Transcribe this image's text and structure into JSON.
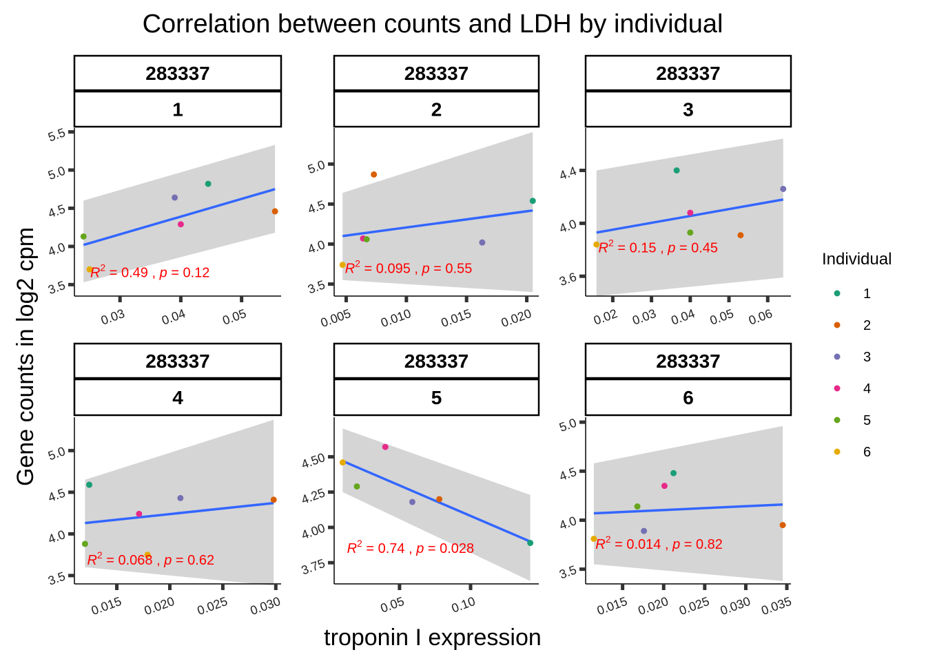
{
  "title": "Correlation between counts and LDH by individual",
  "xlabel": "troponin I expression",
  "ylabel": "Gene counts in log2 cpm",
  "legend": {
    "title": "Individual",
    "items": [
      {
        "label": "1",
        "color": "#1b9e77"
      },
      {
        "label": "2",
        "color": "#d95f02"
      },
      {
        "label": "3",
        "color": "#7570b3"
      },
      {
        "label": "4",
        "color": "#e7298a"
      },
      {
        "label": "5",
        "color": "#66a61e"
      },
      {
        "label": "6",
        "color": "#e6ab02"
      }
    ]
  },
  "chart_data": [
    {
      "type": "scatter",
      "strip_top": "283337",
      "strip_bottom": "1",
      "xlim": [
        0.0225,
        0.0565
      ],
      "ylim": [
        3.35,
        5.55
      ],
      "xticks": [
        {
          "v": 0.03,
          "label": "0.03"
        },
        {
          "v": 0.04,
          "label": "0.04"
        },
        {
          "v": 0.05,
          "label": "0.05"
        }
      ],
      "yticks": [
        {
          "v": 3.5,
          "label": "3.5"
        },
        {
          "v": 4.0,
          "label": "4.0"
        },
        {
          "v": 4.5,
          "label": "4.5"
        },
        {
          "v": 5.0,
          "label": "5.0"
        },
        {
          "v": 5.5,
          "label": "5.5"
        }
      ],
      "points": [
        {
          "individual": "1",
          "x": 0.0445,
          "y": 4.82
        },
        {
          "individual": "2",
          "x": 0.0555,
          "y": 4.46
        },
        {
          "individual": "3",
          "x": 0.039,
          "y": 4.64
        },
        {
          "individual": "4",
          "x": 0.04,
          "y": 4.29
        },
        {
          "individual": "5",
          "x": 0.024,
          "y": 4.13
        },
        {
          "individual": "6",
          "x": 0.025,
          "y": 3.7
        }
      ],
      "fit": {
        "x": [
          0.024,
          0.0555
        ],
        "y": [
          4.02,
          4.75
        ],
        "band_low": [
          3.53,
          4.18
        ],
        "band_high": [
          4.6,
          5.33
        ]
      },
      "annotation": {
        "r2_symbol": "R",
        "r2_exp": "2",
        "r2_rest": " = 0.49 , ",
        "p_symbol": "p",
        "p_rest": " = 0.12",
        "x": 0.0251,
        "y": 3.6
      }
    },
    {
      "type": "scatter",
      "strip_top": "283337",
      "strip_bottom": "2",
      "xlim": [
        0.004,
        0.021
      ],
      "ylim": [
        3.35,
        5.45
      ],
      "xticks": [
        {
          "v": 0.005,
          "label": "0.005"
        },
        {
          "v": 0.01,
          "label": "0.010"
        },
        {
          "v": 0.015,
          "label": "0.015"
        },
        {
          "v": 0.02,
          "label": "0.020"
        }
      ],
      "yticks": [
        {
          "v": 3.5,
          "label": "3.5"
        },
        {
          "v": 4.0,
          "label": "4.0"
        },
        {
          "v": 4.5,
          "label": "4.5"
        },
        {
          "v": 5.0,
          "label": "5.0"
        }
      ],
      "points": [
        {
          "individual": "1",
          "x": 0.0205,
          "y": 4.54
        },
        {
          "individual": "2",
          "x": 0.0073,
          "y": 4.87
        },
        {
          "individual": "3",
          "x": 0.0163,
          "y": 4.02
        },
        {
          "individual": "4",
          "x": 0.0064,
          "y": 4.07
        },
        {
          "individual": "5",
          "x": 0.0067,
          "y": 4.06
        },
        {
          "individual": "6",
          "x": 0.0047,
          "y": 3.74
        }
      ],
      "fit": {
        "x": [
          0.0047,
          0.0205
        ],
        "y": [
          4.1,
          4.42
        ],
        "band_low": [
          3.55,
          3.4
        ],
        "band_high": [
          4.64,
          5.4
        ]
      },
      "annotation": {
        "r2_symbol": "R",
        "r2_exp": "2",
        "r2_rest": " = 0.095 , ",
        "p_symbol": "p",
        "p_rest": " = 0.55",
        "x": 0.0049,
        "y": 3.64
      }
    },
    {
      "type": "scatter",
      "strip_top": "283337",
      "strip_bottom": "3",
      "xlim": [
        0.013,
        0.066
      ],
      "ylim": [
        3.45,
        4.72
      ],
      "xticks": [
        {
          "v": 0.02,
          "label": "0.02"
        },
        {
          "v": 0.03,
          "label": "0.03"
        },
        {
          "v": 0.04,
          "label": "0.04"
        },
        {
          "v": 0.05,
          "label": "0.05"
        },
        {
          "v": 0.06,
          "label": "0.06"
        }
      ],
      "yticks": [
        {
          "v": 3.6,
          "label": "3.6"
        },
        {
          "v": 4.0,
          "label": "4.0"
        },
        {
          "v": 4.4,
          "label": "4.4"
        }
      ],
      "points": [
        {
          "individual": "1",
          "x": 0.0365,
          "y": 4.4
        },
        {
          "individual": "2",
          "x": 0.053,
          "y": 3.91
        },
        {
          "individual": "3",
          "x": 0.064,
          "y": 4.26
        },
        {
          "individual": "4",
          "x": 0.04,
          "y": 4.08
        },
        {
          "individual": "5",
          "x": 0.04,
          "y": 3.93
        },
        {
          "individual": "6",
          "x": 0.0158,
          "y": 3.84
        }
      ],
      "fit": {
        "x": [
          0.0158,
          0.064
        ],
        "y": [
          3.93,
          4.18
        ],
        "band_low": [
          3.45,
          3.59
        ],
        "band_high": [
          4.4,
          4.64
        ]
      },
      "annotation": {
        "r2_symbol": "R",
        "r2_exp": "2",
        "r2_rest": " = 0.15 , ",
        "p_symbol": "p",
        "p_rest": " = 0.45",
        "x": 0.0163,
        "y": 3.78
      }
    },
    {
      "type": "scatter",
      "strip_top": "283337",
      "strip_bottom": "4",
      "xlim": [
        0.011,
        0.0305
      ],
      "ylim": [
        3.4,
        5.4
      ],
      "xticks": [
        {
          "v": 0.015,
          "label": "0.015"
        },
        {
          "v": 0.02,
          "label": "0.020"
        },
        {
          "v": 0.025,
          "label": "0.025"
        },
        {
          "v": 0.03,
          "label": "0.030"
        }
      ],
      "yticks": [
        {
          "v": 3.5,
          "label": "3.5"
        },
        {
          "v": 4.0,
          "label": "4.0"
        },
        {
          "v": 4.5,
          "label": "4.5"
        },
        {
          "v": 5.0,
          "label": "5.0"
        }
      ],
      "points": [
        {
          "individual": "1",
          "x": 0.0124,
          "y": 4.59
        },
        {
          "individual": "2",
          "x": 0.0298,
          "y": 4.41
        },
        {
          "individual": "3",
          "x": 0.021,
          "y": 4.43
        },
        {
          "individual": "4",
          "x": 0.0171,
          "y": 4.24
        },
        {
          "individual": "5",
          "x": 0.012,
          "y": 3.88
        },
        {
          "individual": "6",
          "x": 0.0179,
          "y": 3.75
        }
      ],
      "fit": {
        "x": [
          0.012,
          0.0298
        ],
        "y": [
          4.13,
          4.37
        ],
        "band_low": [
          3.6,
          3.38
        ],
        "band_high": [
          4.65,
          5.37
        ]
      },
      "annotation": {
        "r2_symbol": "R",
        "r2_exp": "2",
        "r2_rest": " = 0.068 , ",
        "p_symbol": "p",
        "p_rest": " = 0.62",
        "x": 0.0122,
        "y": 3.63
      }
    },
    {
      "type": "scatter",
      "strip_top": "283337",
      "strip_bottom": "5",
      "xlim": [
        0.004,
        0.148
      ],
      "ylim": [
        3.6,
        4.78
      ],
      "xticks": [
        {
          "v": 0.05,
          "label": "0.05"
        },
        {
          "v": 0.1,
          "label": "0.10"
        }
      ],
      "yticks": [
        {
          "v": 3.75,
          "label": "3.75"
        },
        {
          "v": 4.0,
          "label": "4.00"
        },
        {
          "v": 4.25,
          "label": "4.25"
        },
        {
          "v": 4.5,
          "label": "4.50"
        }
      ],
      "points": [
        {
          "individual": "1",
          "x": 0.142,
          "y": 3.89
        },
        {
          "individual": "2",
          "x": 0.078,
          "y": 4.2
        },
        {
          "individual": "3",
          "x": 0.059,
          "y": 4.18
        },
        {
          "individual": "4",
          "x": 0.04,
          "y": 4.57
        },
        {
          "individual": "5",
          "x": 0.02,
          "y": 4.29
        },
        {
          "individual": "6",
          "x": 0.01,
          "y": 4.46
        }
      ],
      "fit": {
        "x": [
          0.01,
          0.142
        ],
        "y": [
          4.47,
          3.9
        ],
        "band_low": [
          4.25,
          3.62
        ],
        "band_high": [
          4.7,
          4.23
        ]
      },
      "annotation": {
        "r2_symbol": "R",
        "r2_exp": "2",
        "r2_rest": " = 0.74 , ",
        "p_symbol": "p",
        "p_rest": " = 0.028",
        "x": 0.013,
        "y": 3.82
      }
    },
    {
      "type": "scatter",
      "strip_top": "283337",
      "strip_bottom": "6",
      "xlim": [
        0.0105,
        0.0355
      ],
      "ylim": [
        3.35,
        5.05
      ],
      "xticks": [
        {
          "v": 0.015,
          "label": "0.015"
        },
        {
          "v": 0.02,
          "label": "0.020"
        },
        {
          "v": 0.025,
          "label": "0.025"
        },
        {
          "v": 0.03,
          "label": "0.030"
        },
        {
          "v": 0.035,
          "label": "0.035"
        }
      ],
      "yticks": [
        {
          "v": 3.5,
          "label": "3.5"
        },
        {
          "v": 4.0,
          "label": "4.0"
        },
        {
          "v": 4.5,
          "label": "4.5"
        },
        {
          "v": 5.0,
          "label": "5.0"
        }
      ],
      "points": [
        {
          "individual": "1",
          "x": 0.0212,
          "y": 4.48
        },
        {
          "individual": "2",
          "x": 0.0345,
          "y": 3.95
        },
        {
          "individual": "3",
          "x": 0.0176,
          "y": 3.89
        },
        {
          "individual": "4",
          "x": 0.0201,
          "y": 4.35
        },
        {
          "individual": "5",
          "x": 0.0168,
          "y": 4.14
        },
        {
          "individual": "6",
          "x": 0.0115,
          "y": 3.81
        }
      ],
      "fit": {
        "x": [
          0.0115,
          0.0345
        ],
        "y": [
          4.07,
          4.16
        ],
        "band_low": [
          3.55,
          3.38
        ],
        "band_high": [
          4.58,
          4.96
        ]
      },
      "annotation": {
        "r2_symbol": "R",
        "r2_exp": "2",
        "r2_rest": " = 0.014 , ",
        "p_symbol": "p",
        "p_rest": " = 0.82",
        "x": 0.0117,
        "y": 3.71
      }
    }
  ]
}
